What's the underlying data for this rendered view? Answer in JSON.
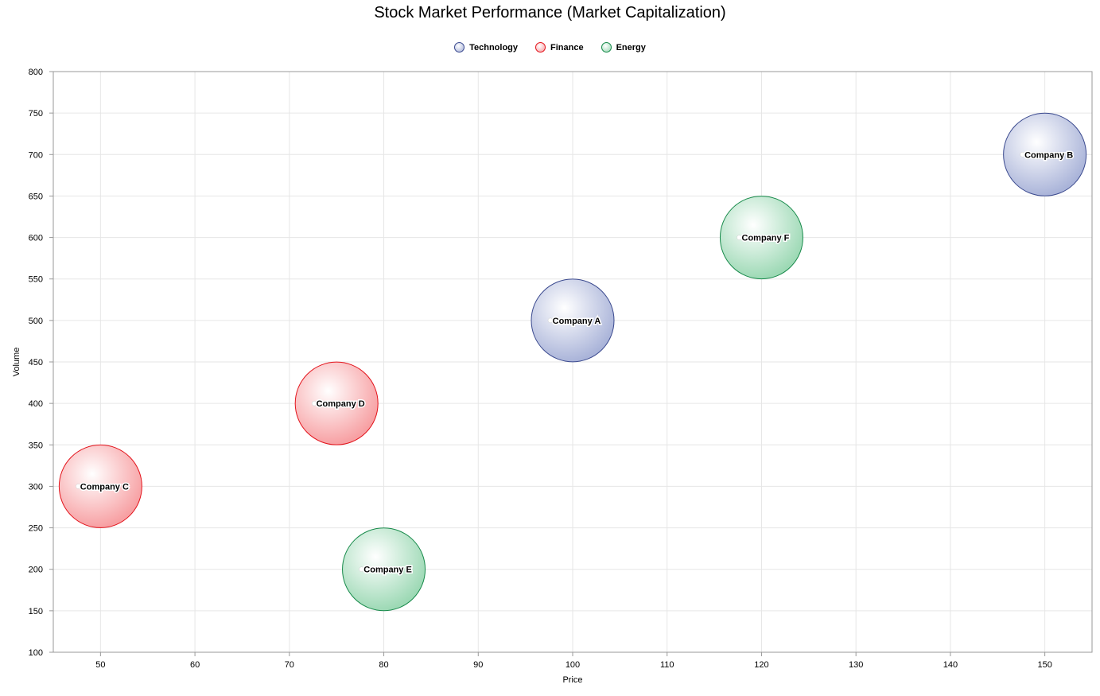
{
  "chart_data": {
    "type": "scatter",
    "title": "Stock Market Performance (Market Capitalization)",
    "xlabel": "Price",
    "ylabel": "Volume",
    "xlim": [
      45,
      155
    ],
    "ylim": [
      100,
      800
    ],
    "xticks": [
      50,
      60,
      70,
      80,
      90,
      100,
      110,
      120,
      130,
      140,
      150
    ],
    "yticks": [
      100,
      150,
      200,
      250,
      300,
      350,
      400,
      450,
      500,
      550,
      600,
      650,
      700,
      750,
      800
    ],
    "grid": true,
    "legend_position": "top-center",
    "series": [
      {
        "name": "Technology",
        "color": "#3b4a8f",
        "fill": "#aab4d9",
        "points": [
          {
            "label": "Company A",
            "x": 100,
            "y": 500
          },
          {
            "label": "Company B",
            "x": 150,
            "y": 700
          }
        ]
      },
      {
        "name": "Finance",
        "color": "#e3131b",
        "fill": "#f7a0a3",
        "points": [
          {
            "label": "Company C",
            "x": 50,
            "y": 300
          },
          {
            "label": "Company D",
            "x": 75,
            "y": 400
          }
        ]
      },
      {
        "name": "Energy",
        "color": "#178a4a",
        "fill": "#9dd9b5",
        "points": [
          {
            "label": "Company E",
            "x": 80,
            "y": 200
          },
          {
            "label": "Company F",
            "x": 120,
            "y": 600
          }
        ]
      }
    ]
  }
}
